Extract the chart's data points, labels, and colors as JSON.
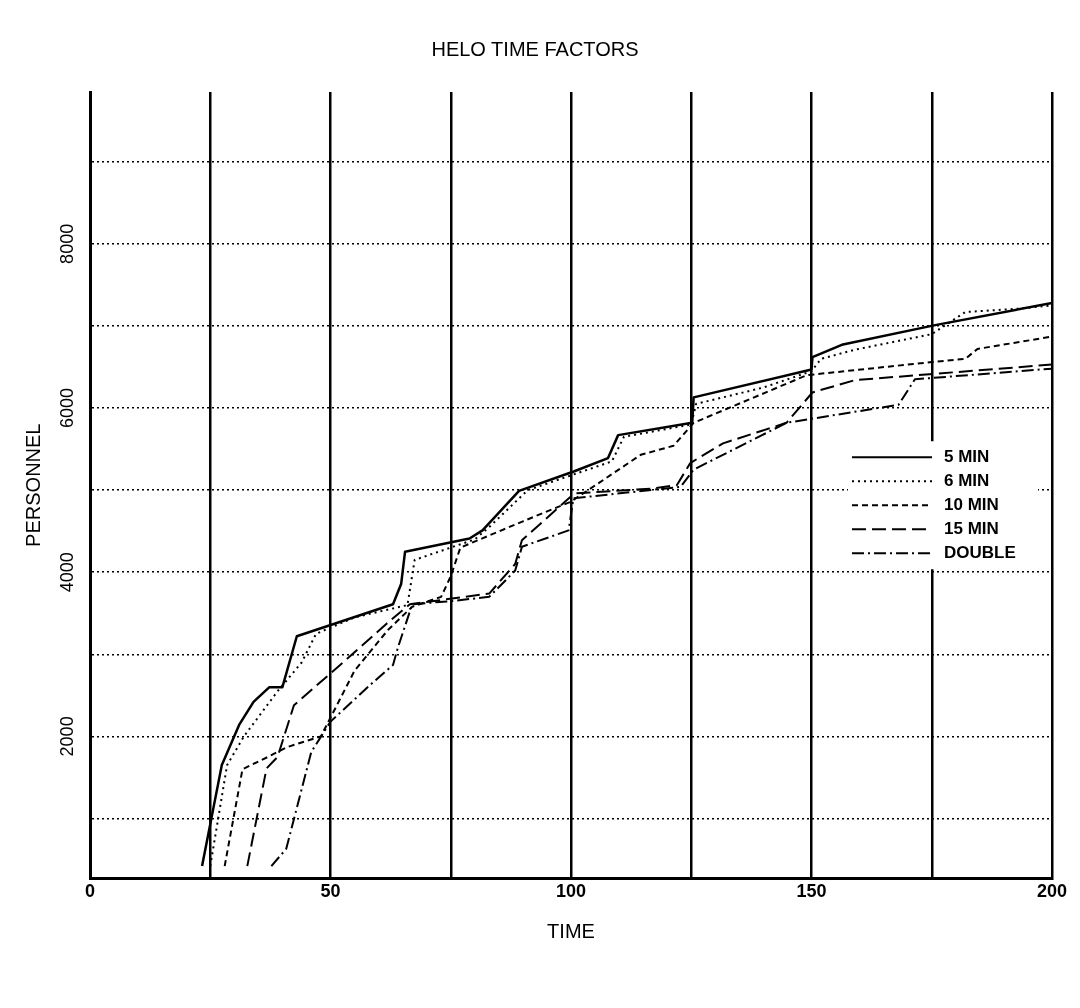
{
  "chart_data": {
    "type": "line",
    "title": "HELO TIME FACTORS",
    "xlabel": "TIME",
    "ylabel": "PERSONNEL",
    "xlim": [
      0,
      200
    ],
    "ylim": [
      270,
      9850
    ],
    "xticks": [
      0,
      {
        "value": 25,
        "label": null
      },
      50,
      {
        "value": 75,
        "label": null
      },
      100,
      {
        "value": 125,
        "label": null
      },
      150,
      {
        "value": 175,
        "label": null
      },
      200
    ],
    "yticks": [
      {
        "value": 1000,
        "label": null
      },
      2000,
      {
        "value": 3000,
        "label": null
      },
      4000,
      {
        "value": 5000,
        "label": null
      },
      6000,
      {
        "value": 7000,
        "label": null
      },
      8000,
      {
        "value": 9000,
        "label": null
      }
    ],
    "grid": true,
    "legend": "right",
    "marker": "none",
    "series": [
      {
        "name": "5 MIN",
        "color": "#000000",
        "line_style": "solid",
        "x": [
          23.3,
          27.4,
          31,
          34,
          37.3,
          40,
          43,
          63,
          64.7,
          65.5,
          78.9,
          81.6,
          89.2,
          100.7,
          107.7,
          109.8,
          125.2,
          125.5,
          150,
          150.2,
          156.3,
          175.7,
          200
        ],
        "values": [
          420,
          1650,
          2140,
          2420,
          2600,
          2600,
          3220,
          3610,
          3860,
          4250,
          4410,
          4510,
          4990,
          5230,
          5390,
          5670,
          5820,
          6130,
          6470,
          6620,
          6770,
          7010,
          7280
        ]
      },
      {
        "name": "6 MIN",
        "color": "#000000",
        "line_style": "dotted",
        "x": [
          25,
          28.5,
          32,
          39,
          44,
          47,
          55,
          66,
          67.5,
          80,
          83,
          91,
          101,
          108.5,
          111,
          125,
          126,
          140,
          150,
          152,
          159,
          175,
          182,
          193,
          200
        ],
        "values": [
          420,
          1650,
          2000,
          2550,
          2900,
          3250,
          3450,
          3600,
          4150,
          4400,
          4550,
          5000,
          5200,
          5350,
          5650,
          5800,
          6050,
          6250,
          6450,
          6600,
          6710,
          6900,
          7170,
          7210,
          7250
        ]
      },
      {
        "name": "10 MIN",
        "color": "#000000",
        "line_style": "dashed",
        "x": [
          28,
          31.7,
          37,
          41,
          48,
          55,
          62,
          67,
          73,
          75,
          77,
          90,
          100,
          114.5,
          121.3,
          125.5,
          149,
          175,
          182,
          184.5,
          200
        ],
        "values": [
          420,
          1600,
          1750,
          1870,
          2000,
          2800,
          3300,
          3580,
          3700,
          3950,
          4300,
          4620,
          4860,
          5430,
          5540,
          5820,
          6400,
          6560,
          6600,
          6720,
          6870
        ]
      },
      {
        "name": "15 MIN",
        "color": "#000000",
        "line_style": "longdash",
        "x": [
          32.7,
          36.7,
          39,
          42.4,
          52,
          61.6,
          66.5,
          83,
          88.4,
          89.8,
          100.7,
          117,
          122,
          124.8,
          131.6,
          144.8,
          150.2,
          159,
          200
        ],
        "values": [
          420,
          1610,
          1750,
          2380,
          2870,
          3370,
          3610,
          3740,
          4100,
          4390,
          4960,
          5020,
          5060,
          5330,
          5570,
          5820,
          6190,
          6340,
          6530
        ]
      },
      {
        "name": "DOUBLE",
        "color": "#000000",
        "line_style": "dashdot",
        "x": [
          37.7,
          40.8,
          46,
          50,
          58.3,
          63,
          64,
          67,
          75.4,
          83,
          88.4,
          89.8,
          99.5,
          100.5,
          122.8,
          125.5,
          144.8,
          168.1,
          171.5,
          200
        ],
        "values": [
          420,
          630,
          1810,
          2180,
          2630,
          2870,
          3080,
          3610,
          3650,
          3700,
          4020,
          4310,
          4510,
          4900,
          5040,
          5250,
          5820,
          6040,
          6350,
          6480
        ]
      }
    ]
  }
}
